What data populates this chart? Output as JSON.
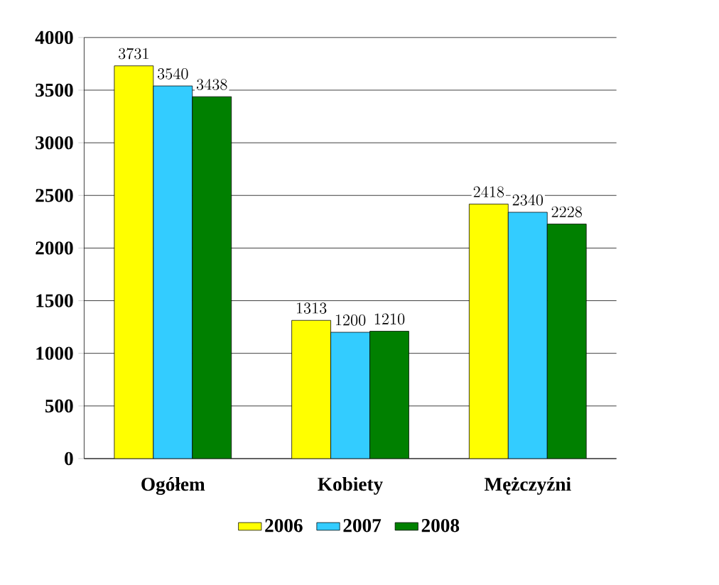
{
  "chart_data": {
    "type": "bar",
    "categories": [
      "Ogółem",
      "Kobiety",
      "Mężczyźni"
    ],
    "series": [
      {
        "name": "2006",
        "color": "#ffff00",
        "values": [
          3731,
          1313,
          2418
        ]
      },
      {
        "name": "2007",
        "color": "#33ccff",
        "values": [
          3540,
          1200,
          2340
        ]
      },
      {
        "name": "2008",
        "color": "#008000",
        "values": [
          3438,
          1210,
          2228
        ]
      }
    ],
    "ylim": [
      0,
      4000
    ],
    "yticks": [
      0,
      500,
      1000,
      1500,
      2000,
      2500,
      3000,
      3500,
      4000
    ],
    "grid": "y",
    "legend": "bottom",
    "data_labels": true
  }
}
